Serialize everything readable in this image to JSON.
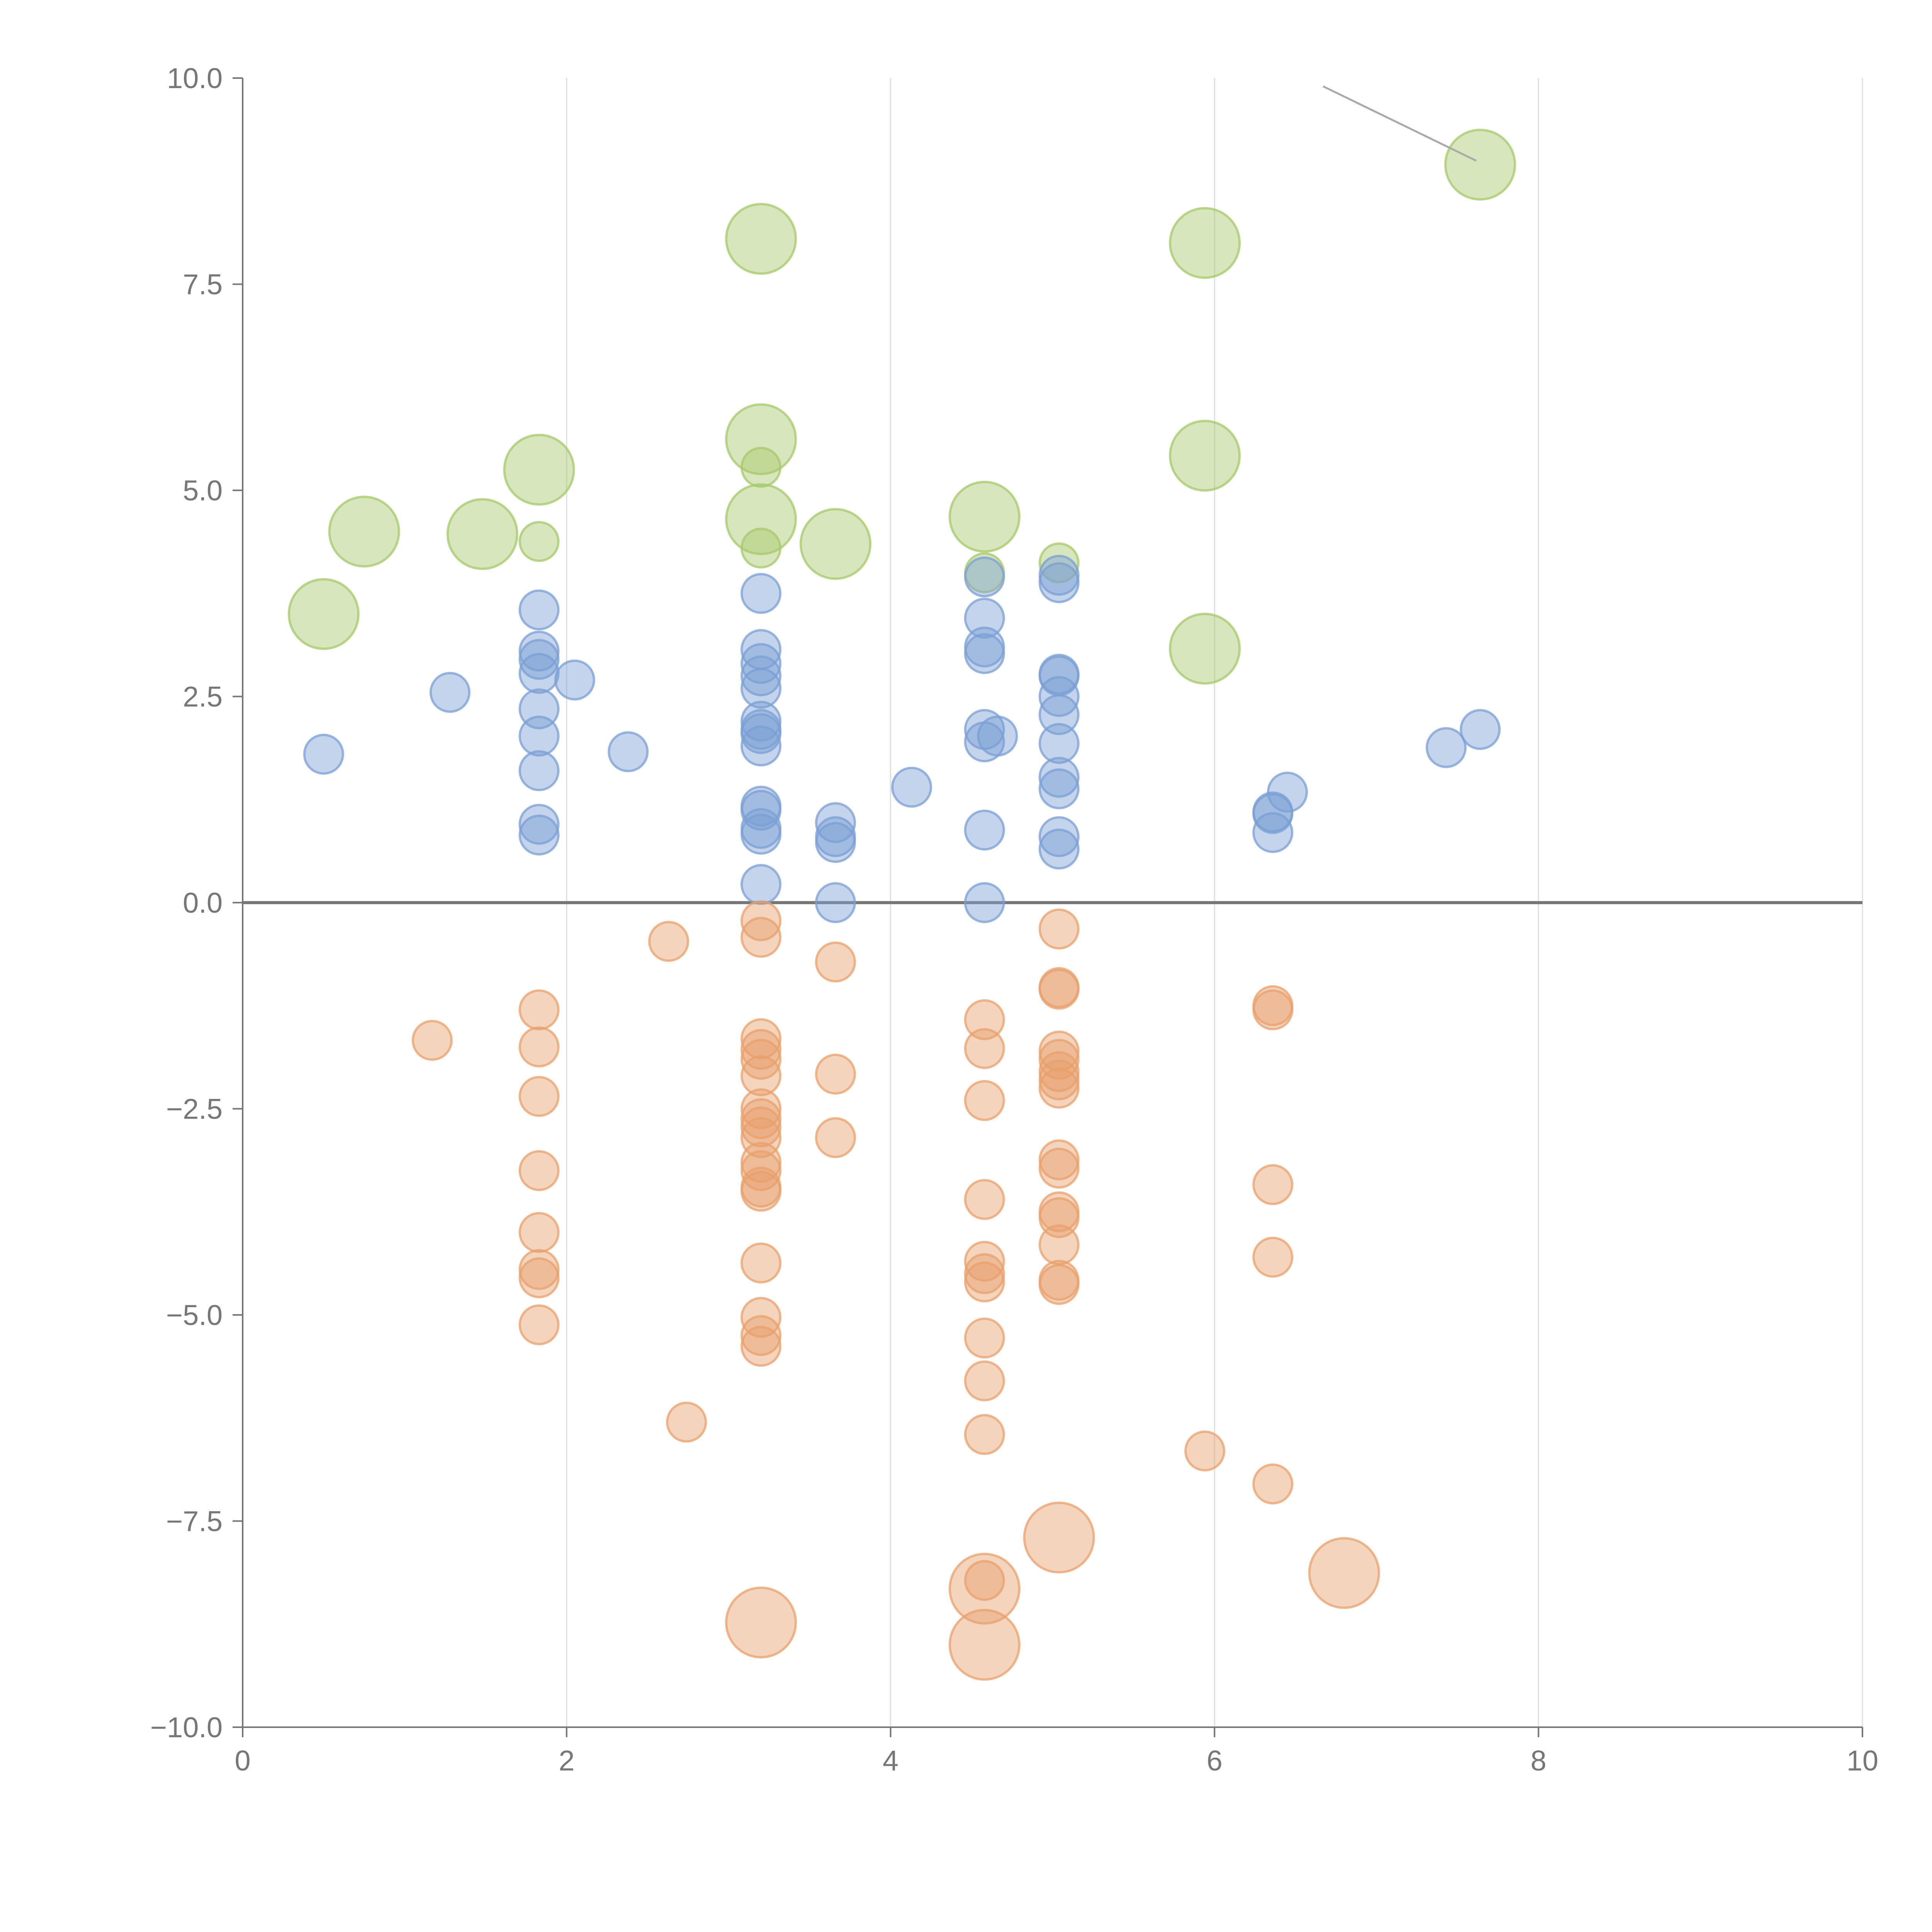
{
  "chart_data": {
    "type": "scatter",
    "title": "",
    "xlabel": "",
    "ylabel": "",
    "xlim": [
      0,
      10
    ],
    "ylim": [
      -10,
      10
    ],
    "grid": "vertical",
    "x_ticks": [
      0,
      2,
      4,
      6,
      8,
      10
    ],
    "x_tick_labels": [
      "0",
      "2",
      "4",
      "6",
      "8",
      "10"
    ],
    "y_ticks": [
      10,
      7.5,
      5,
      2.5,
      0,
      -2.5,
      -5,
      -7.5,
      -10
    ],
    "y_tick_labels": [
      "10.0",
      "7.5",
      "5.0",
      "2.5",
      "0.0",
      "−2.5",
      "−5.0",
      "−7.5",
      "−10.0"
    ],
    "series": [
      {
        "name": "green",
        "color": "#a7c86a",
        "points": [
          {
            "x": 0.5,
            "y": 3.5,
            "size": 3
          },
          {
            "x": 0.75,
            "y": 4.5,
            "size": 3
          },
          {
            "x": 1.48,
            "y": 4.47,
            "size": 3
          },
          {
            "x": 1.83,
            "y": 5.25,
            "size": 3
          },
          {
            "x": 1.83,
            "y": 4.38,
            "size": 1
          },
          {
            "x": 3.2,
            "y": 8.05,
            "size": 3
          },
          {
            "x": 3.2,
            "y": 5.62,
            "size": 3
          },
          {
            "x": 3.2,
            "y": 5.28,
            "size": 1
          },
          {
            "x": 3.2,
            "y": 4.65,
            "size": 3
          },
          {
            "x": 3.2,
            "y": 4.3,
            "size": 1
          },
          {
            "x": 3.66,
            "y": 4.35,
            "size": 3
          },
          {
            "x": 4.58,
            "y": 4.68,
            "size": 3
          },
          {
            "x": 4.58,
            "y": 4.0,
            "size": 1
          },
          {
            "x": 5.04,
            "y": 4.12,
            "size": 1
          },
          {
            "x": 5.94,
            "y": 8.0,
            "size": 3
          },
          {
            "x": 5.94,
            "y": 5.42,
            "size": 3
          },
          {
            "x": 5.94,
            "y": 3.08,
            "size": 3
          },
          {
            "x": 7.64,
            "y": 8.95,
            "size": 3
          }
        ]
      },
      {
        "name": "blue",
        "color": "#7b9fd4",
        "points": [
          {
            "x": 0.5,
            "y": 1.8,
            "size": 1
          },
          {
            "x": 1.28,
            "y": 2.55,
            "size": 1
          },
          {
            "x": 1.83,
            "y": 3.55,
            "size": 1
          },
          {
            "x": 1.83,
            "y": 3.05,
            "size": 1
          },
          {
            "x": 1.83,
            "y": 2.95,
            "size": 1
          },
          {
            "x": 1.83,
            "y": 2.78,
            "size": 1
          },
          {
            "x": 1.83,
            "y": 2.35,
            "size": 1
          },
          {
            "x": 1.83,
            "y": 2.02,
            "size": 1
          },
          {
            "x": 1.83,
            "y": 1.6,
            "size": 1
          },
          {
            "x": 1.83,
            "y": 0.95,
            "size": 1
          },
          {
            "x": 1.83,
            "y": 0.82,
            "size": 1
          },
          {
            "x": 2.05,
            "y": 2.7,
            "size": 1
          },
          {
            "x": 2.38,
            "y": 1.83,
            "size": 1
          },
          {
            "x": 3.2,
            "y": 3.75,
            "size": 1
          },
          {
            "x": 3.2,
            "y": 3.07,
            "size": 1
          },
          {
            "x": 3.2,
            "y": 2.9,
            "size": 1
          },
          {
            "x": 3.2,
            "y": 2.75,
            "size": 1
          },
          {
            "x": 3.2,
            "y": 2.6,
            "size": 1
          },
          {
            "x": 3.2,
            "y": 2.2,
            "size": 1
          },
          {
            "x": 3.2,
            "y": 2.1,
            "size": 1
          },
          {
            "x": 3.2,
            "y": 2.05,
            "size": 1
          },
          {
            "x": 3.2,
            "y": 1.9,
            "size": 1
          },
          {
            "x": 3.2,
            "y": 1.17,
            "size": 1
          },
          {
            "x": 3.2,
            "y": 1.12,
            "size": 1
          },
          {
            "x": 3.2,
            "y": 0.9,
            "size": 1
          },
          {
            "x": 3.2,
            "y": 0.83,
            "size": 1
          },
          {
            "x": 3.2,
            "y": 0.22,
            "size": 1
          },
          {
            "x": 3.66,
            "y": 0.97,
            "size": 1
          },
          {
            "x": 3.66,
            "y": 0.8,
            "size": 1
          },
          {
            "x": 3.66,
            "y": 0.73,
            "size": 1
          },
          {
            "x": 3.66,
            "y": 0.0,
            "size": 1
          },
          {
            "x": 4.13,
            "y": 1.4,
            "size": 1
          },
          {
            "x": 4.58,
            "y": 3.95,
            "size": 1
          },
          {
            "x": 4.58,
            "y": 3.45,
            "size": 1
          },
          {
            "x": 4.58,
            "y": 3.1,
            "size": 1
          },
          {
            "x": 4.58,
            "y": 3.02,
            "size": 1
          },
          {
            "x": 4.58,
            "y": 2.1,
            "size": 1
          },
          {
            "x": 4.58,
            "y": 1.95,
            "size": 1
          },
          {
            "x": 4.66,
            "y": 2.02,
            "size": 1
          },
          {
            "x": 4.58,
            "y": 0.88,
            "size": 1
          },
          {
            "x": 4.58,
            "y": 0.0,
            "size": 1
          },
          {
            "x": 5.04,
            "y": 3.97,
            "size": 1
          },
          {
            "x": 5.04,
            "y": 3.88,
            "size": 1
          },
          {
            "x": 5.04,
            "y": 2.77,
            "size": 1
          },
          {
            "x": 5.04,
            "y": 2.75,
            "size": 1
          },
          {
            "x": 5.04,
            "y": 2.5,
            "size": 1
          },
          {
            "x": 5.04,
            "y": 2.28,
            "size": 1
          },
          {
            "x": 5.04,
            "y": 1.93,
            "size": 1
          },
          {
            "x": 5.04,
            "y": 1.52,
            "size": 1
          },
          {
            "x": 5.04,
            "y": 1.38,
            "size": 1
          },
          {
            "x": 5.04,
            "y": 0.8,
            "size": 1
          },
          {
            "x": 5.04,
            "y": 0.65,
            "size": 1
          },
          {
            "x": 6.36,
            "y": 1.1,
            "size": 1
          },
          {
            "x": 6.36,
            "y": 1.08,
            "size": 1
          },
          {
            "x": 6.36,
            "y": 0.85,
            "size": 1
          },
          {
            "x": 6.45,
            "y": 1.34,
            "size": 1
          },
          {
            "x": 7.43,
            "y": 1.88,
            "size": 1
          },
          {
            "x": 7.64,
            "y": 2.1,
            "size": 1
          }
        ]
      },
      {
        "name": "orange",
        "color": "#e8a06c",
        "points": [
          {
            "x": 1.17,
            "y": -1.67,
            "size": 1
          },
          {
            "x": 1.83,
            "y": -1.3,
            "size": 1
          },
          {
            "x": 1.83,
            "y": -1.75,
            "size": 1
          },
          {
            "x": 1.83,
            "y": -2.35,
            "size": 1
          },
          {
            "x": 1.83,
            "y": -3.25,
            "size": 1
          },
          {
            "x": 1.83,
            "y": -4.0,
            "size": 1
          },
          {
            "x": 1.83,
            "y": -4.45,
            "size": 1
          },
          {
            "x": 1.83,
            "y": -4.55,
            "size": 1
          },
          {
            "x": 1.83,
            "y": -5.12,
            "size": 1
          },
          {
            "x": 2.63,
            "y": -0.47,
            "size": 1
          },
          {
            "x": 2.74,
            "y": -6.3,
            "size": 1
          },
          {
            "x": 3.2,
            "y": -0.22,
            "size": 1
          },
          {
            "x": 3.2,
            "y": -0.42,
            "size": 1
          },
          {
            "x": 3.2,
            "y": -1.65,
            "size": 1
          },
          {
            "x": 3.2,
            "y": -1.78,
            "size": 1
          },
          {
            "x": 3.2,
            "y": -1.9,
            "size": 1
          },
          {
            "x": 3.2,
            "y": -2.1,
            "size": 1
          },
          {
            "x": 3.2,
            "y": -2.5,
            "size": 1
          },
          {
            "x": 3.2,
            "y": -2.62,
            "size": 1
          },
          {
            "x": 3.2,
            "y": -2.72,
            "size": 1
          },
          {
            "x": 3.2,
            "y": -2.85,
            "size": 1
          },
          {
            "x": 3.2,
            "y": -3.15,
            "size": 1
          },
          {
            "x": 3.2,
            "y": -3.25,
            "size": 1
          },
          {
            "x": 3.2,
            "y": -3.45,
            "size": 1
          },
          {
            "x": 3.2,
            "y": -3.5,
            "size": 1
          },
          {
            "x": 3.2,
            "y": -4.37,
            "size": 1
          },
          {
            "x": 3.2,
            "y": -5.03,
            "size": 1
          },
          {
            "x": 3.2,
            "y": -5.25,
            "size": 1
          },
          {
            "x": 3.2,
            "y": -5.38,
            "size": 1
          },
          {
            "x": 3.2,
            "y": -8.73,
            "size": 3
          },
          {
            "x": 3.66,
            "y": -0.72,
            "size": 1
          },
          {
            "x": 3.66,
            "y": -2.08,
            "size": 1
          },
          {
            "x": 3.66,
            "y": -2.85,
            "size": 1
          },
          {
            "x": 4.58,
            "y": -1.42,
            "size": 1
          },
          {
            "x": 4.58,
            "y": -1.77,
            "size": 1
          },
          {
            "x": 4.58,
            "y": -2.4,
            "size": 1
          },
          {
            "x": 4.58,
            "y": -3.6,
            "size": 1
          },
          {
            "x": 4.58,
            "y": -4.35,
            "size": 1
          },
          {
            "x": 4.58,
            "y": -4.5,
            "size": 1
          },
          {
            "x": 4.58,
            "y": -4.6,
            "size": 1
          },
          {
            "x": 4.58,
            "y": -5.28,
            "size": 1
          },
          {
            "x": 4.58,
            "y": -5.8,
            "size": 1
          },
          {
            "x": 4.58,
            "y": -6.45,
            "size": 1
          },
          {
            "x": 4.58,
            "y": -8.22,
            "size": 1
          },
          {
            "x": 4.58,
            "y": -8.32,
            "size": 3
          },
          {
            "x": 4.58,
            "y": -9.0,
            "size": 3
          },
          {
            "x": 5.04,
            "y": -0.32,
            "size": 1
          },
          {
            "x": 5.04,
            "y": -1.03,
            "size": 1
          },
          {
            "x": 5.04,
            "y": -1.05,
            "size": 1
          },
          {
            "x": 5.04,
            "y": -1.8,
            "size": 1
          },
          {
            "x": 5.04,
            "y": -1.9,
            "size": 1
          },
          {
            "x": 5.04,
            "y": -2.05,
            "size": 1
          },
          {
            "x": 5.04,
            "y": -2.15,
            "size": 1
          },
          {
            "x": 5.04,
            "y": -2.25,
            "size": 1
          },
          {
            "x": 5.04,
            "y": -3.12,
            "size": 1
          },
          {
            "x": 5.04,
            "y": -3.22,
            "size": 1
          },
          {
            "x": 5.04,
            "y": -3.75,
            "size": 1
          },
          {
            "x": 5.04,
            "y": -3.82,
            "size": 1
          },
          {
            "x": 5.04,
            "y": -4.15,
            "size": 1
          },
          {
            "x": 5.04,
            "y": -4.58,
            "size": 1
          },
          {
            "x": 5.04,
            "y": -4.63,
            "size": 1
          },
          {
            "x": 5.04,
            "y": -7.7,
            "size": 3
          },
          {
            "x": 5.94,
            "y": -6.65,
            "size": 1
          },
          {
            "x": 6.36,
            "y": -1.25,
            "size": 1
          },
          {
            "x": 6.36,
            "y": -1.3,
            "size": 1
          },
          {
            "x": 6.36,
            "y": -3.42,
            "size": 1
          },
          {
            "x": 6.36,
            "y": -4.3,
            "size": 1
          },
          {
            "x": 6.36,
            "y": -7.05,
            "size": 1
          },
          {
            "x": 6.8,
            "y": -8.13,
            "size": 3
          }
        ]
      }
    ]
  }
}
